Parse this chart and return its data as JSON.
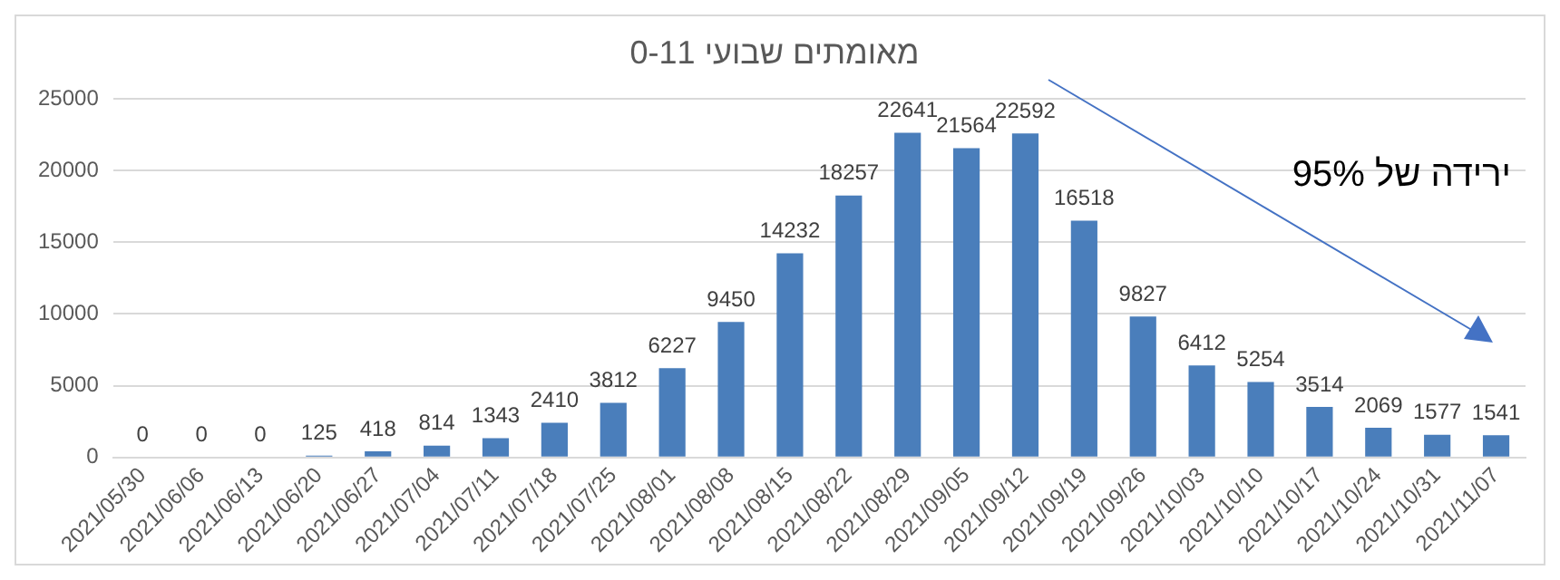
{
  "chart_data": {
    "type": "bar",
    "title": "מאומתים שבועי 0-11",
    "categories": [
      "2021/05/30",
      "2021/06/06",
      "2021/06/13",
      "2021/06/20",
      "2021/06/27",
      "2021/07/04",
      "2021/07/11",
      "2021/07/18",
      "2021/07/25",
      "2021/08/01",
      "2021/08/08",
      "2021/08/15",
      "2021/08/22",
      "2021/08/29",
      "2021/09/05",
      "2021/09/12",
      "2021/09/19",
      "2021/09/26",
      "2021/10/03",
      "2021/10/10",
      "2021/10/17",
      "2021/10/24",
      "2021/10/31",
      "2021/11/07"
    ],
    "values": [
      0,
      0,
      0,
      125,
      418,
      814,
      1343,
      2410,
      3812,
      6227,
      9450,
      14232,
      18257,
      22641,
      21564,
      22592,
      16518,
      9827,
      6412,
      5254,
      3514,
      2069,
      1577,
      1541
    ],
    "color": "#4a7ebb",
    "ylim": [
      0,
      25000
    ],
    "yticks": [
      0,
      5000,
      10000,
      15000,
      20000,
      25000
    ],
    "grid": "y",
    "legend": false,
    "data_labels": true,
    "annotations": [
      "ירידה של 95%"
    ]
  }
}
